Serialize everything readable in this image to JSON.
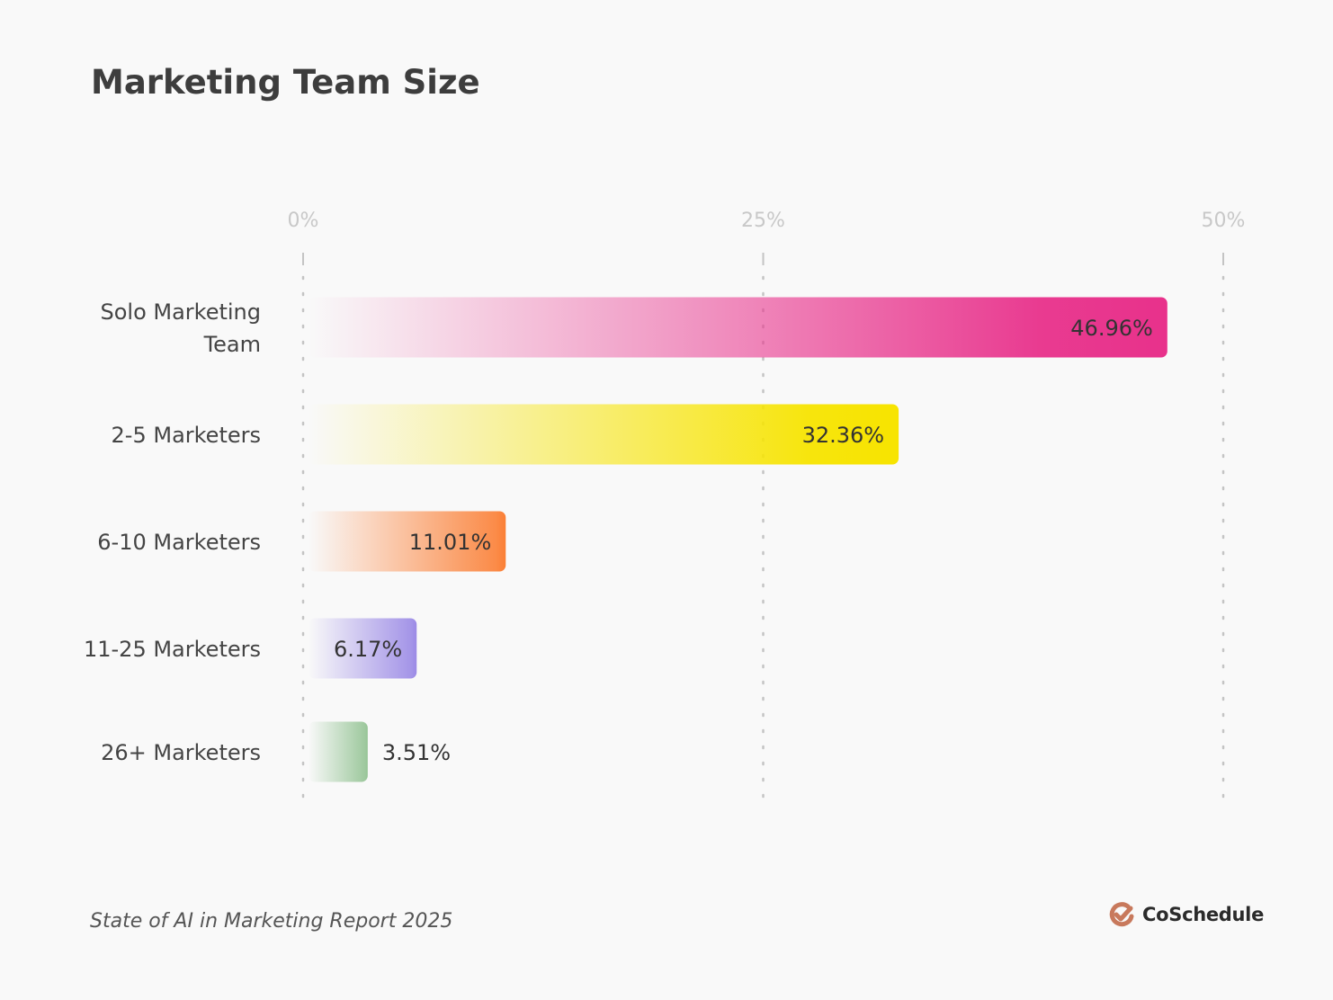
{
  "title": "Marketing Team Size",
  "source": "State of AI in Marketing Report 2025",
  "brand": {
    "name": "CoSchedule",
    "logo_icon": "check-circle-icon",
    "color": "#c8795c"
  },
  "chart_data": {
    "type": "bar",
    "orientation": "horizontal",
    "title": "Marketing Team Size",
    "categories": [
      [
        "Solo Marketing",
        "Team"
      ],
      [
        "2-5 Marketers"
      ],
      [
        "6-10 Marketers"
      ],
      [
        "11-25 Marketers"
      ],
      [
        "26+ Marketers"
      ]
    ],
    "values": [
      46.96,
      32.36,
      11.01,
      6.17,
      3.51
    ],
    "data_labels": [
      "46.96%",
      "32.36%",
      "11.01%",
      "6.17%",
      "3.51%"
    ],
    "colors": [
      "#e8318b",
      "#f7e400",
      "#fb7f35",
      "#9b8ae6",
      "#95c495"
    ],
    "xlim": [
      0,
      50
    ],
    "xticks": [
      0,
      25,
      50
    ],
    "xtick_labels": [
      "0%",
      "25%",
      "50%"
    ],
    "xaxis_position": "top",
    "grid": "dotted vertical",
    "xlabel": "",
    "ylabel": ""
  }
}
